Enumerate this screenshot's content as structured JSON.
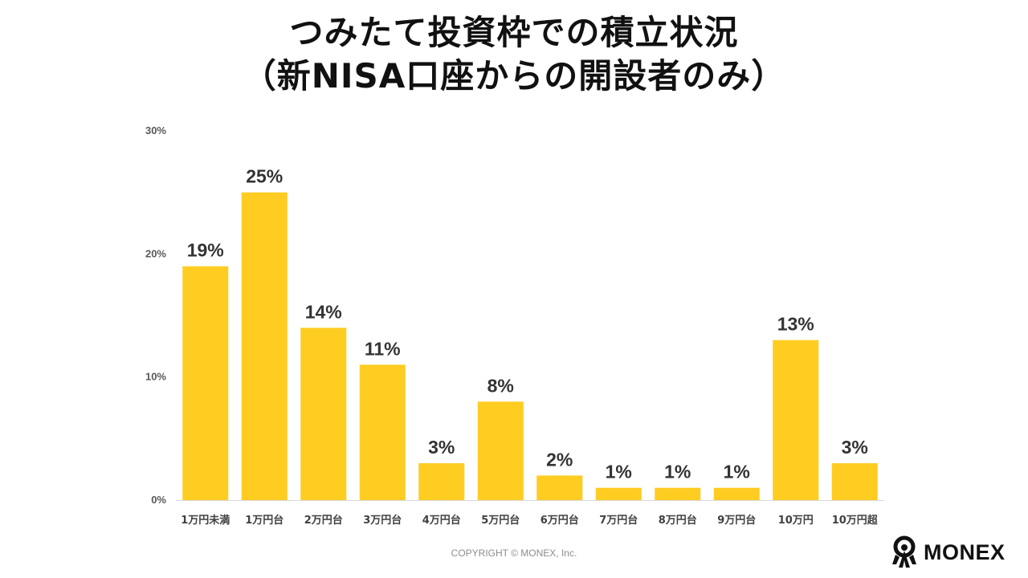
{
  "title": {
    "line1": "つみたて投資枠での積立状況",
    "line2": "（新NISA口座からの開設者のみ）"
  },
  "chart_data": {
    "type": "bar",
    "categories": [
      "1万円未満",
      "1万円台",
      "2万円台",
      "3万円台",
      "4万円台",
      "5万円台",
      "6万円台",
      "7万円台",
      "8万円台",
      "9万円台",
      "10万円",
      "10万円超"
    ],
    "values": [
      19,
      25,
      14,
      11,
      3,
      8,
      2,
      1,
      1,
      1,
      13,
      3
    ],
    "data_labels": [
      "19%",
      "25%",
      "14%",
      "11%",
      "3%",
      "8%",
      "2%",
      "1%",
      "1%",
      "1%",
      "13%",
      "3%"
    ],
    "y_ticks": [
      0,
      10,
      20,
      30
    ],
    "y_tick_labels": [
      "0%",
      "10%",
      "20%",
      "30%"
    ],
    "ylim": [
      0,
      30
    ],
    "grid": false,
    "bar_color": "#FFCC22"
  },
  "copyright": "COPYRIGHT © MONEX, Inc.",
  "logo": {
    "text": "MONEX",
    "icon": "monex-person-icon"
  }
}
